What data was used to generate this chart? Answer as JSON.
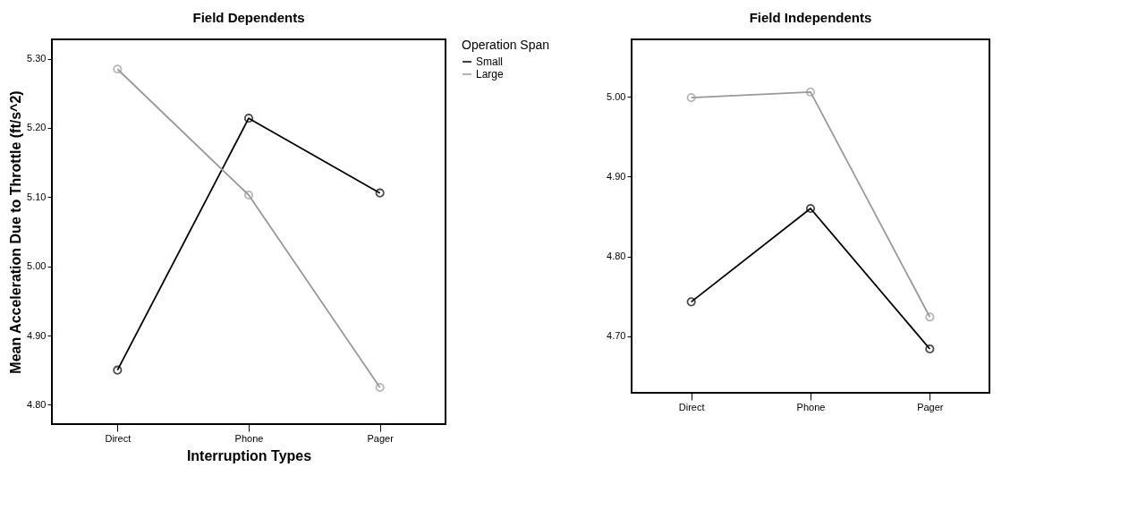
{
  "chart_data": [
    {
      "type": "line",
      "title": "Field Dependents",
      "xlabel": "Interruption Types",
      "ylabel": "Mean Acceleration Due to Throttle (ft/s^2)",
      "legend_title": "Operation Span",
      "legend": "right",
      "marker": "circle",
      "grid": false,
      "categories": [
        "Direct",
        "Phone",
        "Pager"
      ],
      "series": [
        {
          "name": "Small",
          "color": "#000000",
          "values": [
            4.85,
            5.214,
            5.106
          ]
        },
        {
          "name": "Large",
          "color": "#999999",
          "values": [
            5.285,
            5.103,
            4.825
          ]
        }
      ],
      "ylim": [
        4.772,
        5.328
      ],
      "yticks": [
        {
          "value": 4.8,
          "label": "4.80"
        },
        {
          "value": 4.9,
          "label": "4.90"
        },
        {
          "value": 5.0,
          "label": "5.00"
        },
        {
          "value": 5.1,
          "label": "5.10"
        },
        {
          "value": 5.2,
          "label": "5.20"
        },
        {
          "value": 5.3,
          "label": "5.30"
        }
      ]
    },
    {
      "type": "line",
      "title": "Field Independents",
      "marker": "circle",
      "grid": false,
      "categories": [
        "Direct",
        "Phone",
        "Pager"
      ],
      "series": [
        {
          "color": "#000000",
          "values": [
            4.743,
            4.86,
            4.684
          ]
        },
        {
          "color": "#999999",
          "values": [
            4.999,
            5.006,
            4.724
          ]
        }
      ],
      "ylim": [
        4.629,
        5.072
      ],
      "yticks": [
        {
          "value": 4.7,
          "label": "4.70"
        },
        {
          "value": 4.8,
          "label": "4.80"
        },
        {
          "value": 4.9,
          "label": "4.90"
        },
        {
          "value": 5.0,
          "label": "5.00"
        }
      ]
    }
  ]
}
